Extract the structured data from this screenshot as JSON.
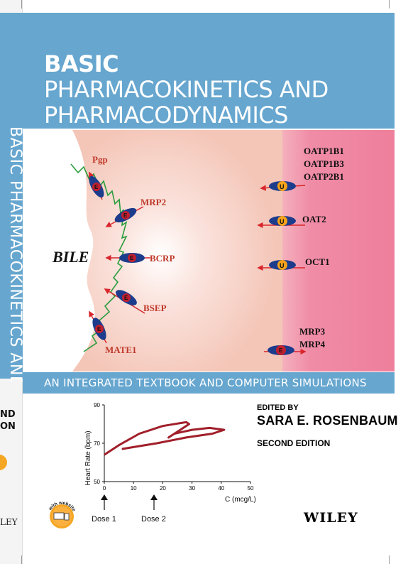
{
  "spine": {
    "title": "BASIC PHARMACOKINETICS AND",
    "edition_line1": "ND",
    "edition_line2": "ON",
    "publisher": "LEY"
  },
  "cover": {
    "title_line1": "BASIC",
    "title_line2a": "PHARMACOKINETICS",
    "title_line2b": " AND",
    "title_line3": "PHARMACODYNAMICS",
    "subtitle": "AN INTEGRATED TEXTBOOK AND COMPUTER SIMULATIONS",
    "editor_label": "EDITED BY",
    "editor_name": "SARA E. ROSENBAUM",
    "edition": "SECOND EDITION",
    "publisher": "WILEY",
    "badge_text": "with website"
  },
  "figure": {
    "bile_label": "BILE",
    "efflux_symbol": "E",
    "uptake_symbol": "U",
    "left_transporters": [
      "Pgp",
      "MRP2",
      "BCRP",
      "BSEP",
      "MATE1"
    ],
    "right_transporters": [
      "OATP1B1",
      "OATP1B3",
      "OATP2B1",
      "OAT2",
      "OCT1",
      "MRP3",
      "MRP4"
    ],
    "colors": {
      "efflux_fill": "#c01f2f",
      "uptake_fill": "#f7a21b",
      "transporter_body": "#1d3c8c",
      "arrow": "#d8262c",
      "label": "#c0392b",
      "bile_membrane": "#2a9d3e",
      "pink_region": "#f08ca6"
    }
  },
  "graph": {
    "ylabel": "Heart Rate (bpm)",
    "xlabel": "C (mcg/L)",
    "dose1": "Dose 1",
    "dose2": "Dose 2"
  },
  "chart_data": {
    "type": "line",
    "xlabel": "C (mcg/L)",
    "ylabel": "Heart Rate (bpm)",
    "xlim": [
      0,
      50
    ],
    "ylim": [
      50,
      90
    ],
    "xticks": [
      0,
      10,
      20,
      30,
      40,
      50
    ],
    "yticks": [
      50,
      70,
      90
    ],
    "series": [
      {
        "x": [
          0,
          5,
          12,
          20,
          28,
          29,
          22,
          24,
          30,
          36,
          41,
          37,
          28,
          18,
          10,
          6
        ],
        "y": [
          64,
          69,
          75,
          79,
          81,
          80,
          73,
          75,
          77,
          78,
          77,
          75,
          73,
          70,
          68,
          67
        ]
      }
    ]
  }
}
